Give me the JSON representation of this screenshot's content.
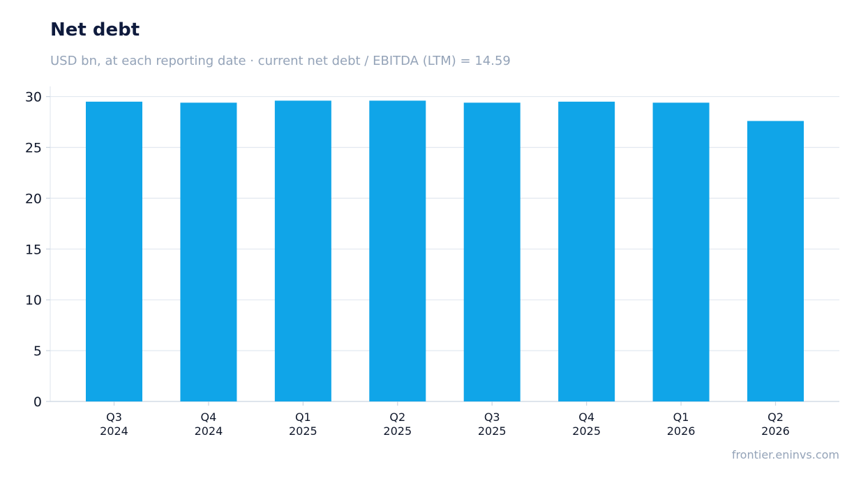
{
  "chart_data": {
    "type": "bar",
    "title": "Net debt",
    "subtitle": "USD bn, at each reporting date · current net debt / EBITDA (LTM) = 14.59",
    "categories": [
      [
        "Q3",
        "2024"
      ],
      [
        "Q4",
        "2024"
      ],
      [
        "Q1",
        "2025"
      ],
      [
        "Q2",
        "2025"
      ],
      [
        "Q3",
        "2025"
      ],
      [
        "Q4",
        "2025"
      ],
      [
        "Q1",
        "2026"
      ],
      [
        "Q2",
        "2026"
      ]
    ],
    "values": [
      29.5,
      29.4,
      29.6,
      29.6,
      29.4,
      29.5,
      29.4,
      27.6
    ],
    "ylim": [
      0,
      31
    ],
    "yticks": [
      0,
      5,
      10,
      15,
      20,
      25,
      30
    ],
    "grid": true,
    "xlabel": "",
    "ylabel": "",
    "bar_color": "#10a5e8"
  },
  "footer": {
    "source": "frontier.eninvs.com"
  }
}
